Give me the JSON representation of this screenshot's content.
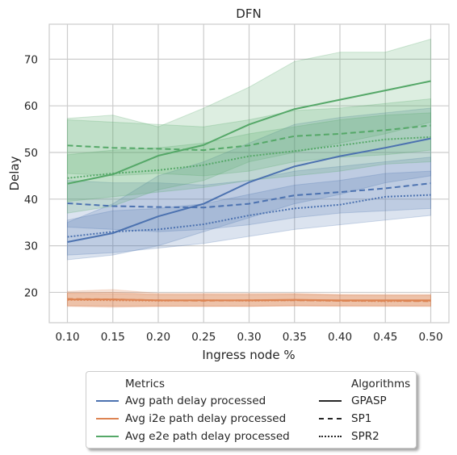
{
  "chart_data": {
    "type": "line",
    "title": "DFN",
    "xlabel": "Ingress node %",
    "ylabel": "Delay",
    "x": [
      0.1,
      0.15,
      0.2,
      0.25,
      0.3,
      0.35,
      0.4,
      0.45,
      0.5
    ],
    "x_tick_labels": [
      "0.10",
      "0.15",
      "0.20",
      "0.25",
      "0.30",
      "0.35",
      "0.40",
      "0.45",
      "0.50"
    ],
    "xlim": [
      0.08,
      0.52
    ],
    "ylim": [
      13.5,
      77.5
    ],
    "y_ticks": [
      20,
      30,
      40,
      50,
      60,
      70
    ],
    "grid": true,
    "legend_placement": "below chart, center",
    "colors": {
      "Avg path delay processed": "#4c72b0",
      "Avg i2e path delay processed": "#dd8452",
      "Avg e2e path delay processed": "#55a868"
    },
    "series": [
      {
        "metric": "Avg path delay processed",
        "algorithm": "GPASP",
        "values": [
          30.8,
          32.7,
          36.3,
          39.0,
          43.6,
          47.0,
          49.2,
          51.0,
          53.0
        ],
        "ci_low": [
          27.0,
          28.0,
          30.0,
          33.0,
          36.0,
          39.0,
          41.0,
          43.5,
          45.0
        ],
        "ci_high": [
          35.0,
          39.0,
          45.0,
          48.0,
          52.0,
          56.0,
          57.5,
          58.5,
          59.5
        ]
      },
      {
        "metric": "Avg path delay processed",
        "algorithm": "SP1",
        "values": [
          39.1,
          38.5,
          38.3,
          38.2,
          39.0,
          40.8,
          41.5,
          42.3,
          43.4
        ],
        "ci_low": [
          34.0,
          33.5,
          33.0,
          33.5,
          34.5,
          36.0,
          37.0,
          37.5,
          38.0
        ],
        "ci_high": [
          44.0,
          43.5,
          43.5,
          43.0,
          44.0,
          46.0,
          47.0,
          48.0,
          49.0
        ]
      },
      {
        "metric": "Avg path delay processed",
        "algorithm": "SPR2",
        "values": [
          31.9,
          33.0,
          33.5,
          34.6,
          36.5,
          38.0,
          38.8,
          40.5,
          40.9
        ],
        "ci_low": [
          28.0,
          28.5,
          29.5,
          30.5,
          32.0,
          33.5,
          34.5,
          35.5,
          36.5
        ],
        "ci_high": [
          35.5,
          37.5,
          38.0,
          39.0,
          41.0,
          43.0,
          44.0,
          45.5,
          46.0
        ]
      },
      {
        "metric": "Avg i2e path delay processed",
        "algorithm": "GPASP",
        "values": [
          18.5,
          18.5,
          18.3,
          18.3,
          18.3,
          18.4,
          18.3,
          18.3,
          18.3
        ],
        "ci_low": [
          17.0,
          16.8,
          17.0,
          17.0,
          17.0,
          17.2,
          17.2,
          17.1,
          17.2
        ],
        "ci_high": [
          20.2,
          20.6,
          19.8,
          19.8,
          19.8,
          19.8,
          19.6,
          19.6,
          19.6
        ]
      },
      {
        "metric": "Avg i2e path delay processed",
        "algorithm": "SP1",
        "values": [
          18.6,
          18.5,
          18.3,
          18.2,
          18.3,
          18.3,
          18.2,
          18.2,
          18.1
        ],
        "ci_low": [
          17.2,
          17.1,
          17.1,
          17.0,
          17.1,
          17.1,
          17.1,
          17.1,
          17.0
        ],
        "ci_high": [
          19.9,
          20.0,
          19.6,
          19.5,
          19.6,
          19.6,
          19.4,
          19.4,
          19.3
        ]
      },
      {
        "metric": "Avg i2e path delay processed",
        "algorithm": "SPR2",
        "values": [
          18.4,
          18.3,
          18.2,
          18.3,
          18.2,
          18.3,
          18.2,
          18.1,
          18.2
        ],
        "ci_low": [
          17.1,
          17.0,
          17.0,
          17.1,
          17.0,
          17.1,
          17.0,
          17.0,
          17.0
        ],
        "ci_high": [
          19.8,
          19.7,
          19.5,
          19.6,
          19.5,
          19.6,
          19.4,
          19.3,
          19.4
        ]
      },
      {
        "metric": "Avg e2e path delay processed",
        "algorithm": "GPASP",
        "values": [
          43.3,
          45.3,
          49.3,
          51.6,
          56.0,
          59.3,
          61.3,
          63.3,
          65.3
        ],
        "ci_low": [
          37.0,
          38.5,
          42.0,
          44.0,
          48.0,
          50.0,
          52.0,
          54.0,
          56.5
        ],
        "ci_high": [
          57.3,
          58.0,
          55.5,
          59.5,
          64.0,
          69.5,
          71.5,
          71.5,
          74.3
        ]
      },
      {
        "metric": "Avg e2e path delay processed",
        "algorithm": "SP1",
        "values": [
          51.5,
          51.0,
          50.8,
          50.5,
          51.5,
          53.5,
          54.0,
          54.8,
          55.8
        ],
        "ci_low": [
          45.5,
          45.0,
          45.5,
          45.0,
          46.0,
          48.0,
          49.0,
          49.5,
          50.5
        ],
        "ci_high": [
          57.0,
          56.5,
          56.0,
          55.5,
          57.0,
          59.0,
          59.5,
          60.5,
          61.5
        ]
      },
      {
        "metric": "Avg e2e path delay processed",
        "algorithm": "SPR2",
        "values": [
          44.5,
          45.5,
          46.2,
          47.3,
          49.2,
          50.3,
          51.5,
          52.8,
          53.3
        ],
        "ci_low": [
          39.5,
          40.5,
          41.5,
          42.5,
          44.0,
          45.0,
          46.0,
          47.5,
          48.0
        ],
        "ci_high": [
          49.5,
          50.5,
          51.0,
          52.0,
          54.0,
          55.5,
          57.0,
          58.0,
          58.5
        ]
      }
    ],
    "legend": {
      "metrics_title": "Metrics",
      "metrics": [
        "Avg path delay processed",
        "Avg i2e path delay processed",
        "Avg e2e path delay processed"
      ],
      "algorithms_title": "Algorithms",
      "algorithms": [
        "GPASP",
        "SP1",
        "SPR2"
      ],
      "algorithm_styles": {
        "GPASP": "solid",
        "SP1": "dashed",
        "SPR2": "dotted"
      }
    }
  }
}
